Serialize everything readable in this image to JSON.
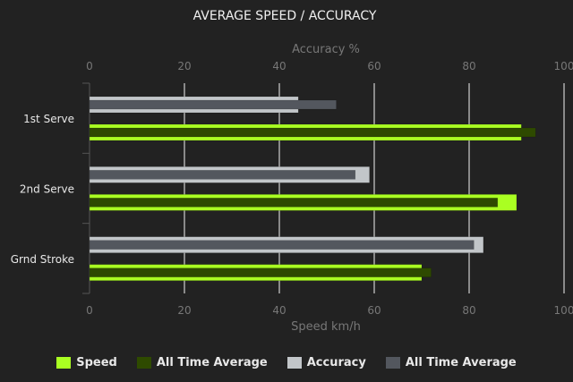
{
  "chart_data": {
    "type": "bar",
    "orientation": "horizontal",
    "title": "AVERAGE SPEED / ACCURACY",
    "categories": [
      "1st Serve",
      "2nd Serve",
      "Grnd Stroke"
    ],
    "top_axis": {
      "label": "Accuracy %",
      "range": [
        0,
        100
      ],
      "ticks": [
        "0",
        "20",
        "40",
        "60",
        "80",
        "100"
      ]
    },
    "bottom_axis": {
      "label": "Speed km/h",
      "range": [
        0,
        100
      ],
      "ticks": [
        "0",
        "20",
        "40",
        "60",
        "80",
        "100"
      ]
    },
    "grid": true,
    "legend_position": "bottom",
    "series": [
      {
        "name": "Speed",
        "axis": "bottom",
        "color": "#aaff22",
        "values": [
          91,
          90,
          70
        ]
      },
      {
        "name": "All Time Average",
        "axis": "bottom",
        "color": "#2e4a00",
        "values": [
          94,
          86,
          72
        ]
      },
      {
        "name": "Accuracy",
        "axis": "top",
        "color": "#c2c6c9",
        "values": [
          44,
          59,
          83
        ]
      },
      {
        "name": "All Time Average",
        "axis": "top",
        "color": "#53575e",
        "values": [
          52,
          56,
          81
        ]
      }
    ]
  }
}
